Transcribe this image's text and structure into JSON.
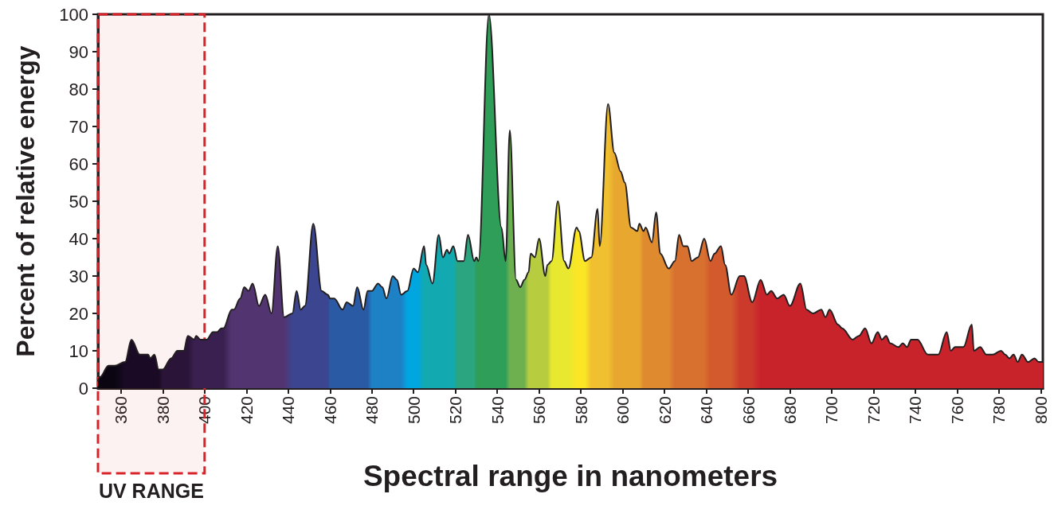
{
  "chart_data": {
    "type": "area",
    "xlabel": "Spectral range in nanometers",
    "ylabel": "Percent of relative energy",
    "x": [
      349,
      350,
      354,
      357,
      362,
      365,
      369,
      373,
      374,
      376,
      378,
      380,
      384,
      387,
      390,
      392,
      395,
      396,
      398,
      401,
      404,
      406,
      408,
      409,
      413,
      414,
      417,
      419,
      421,
      423,
      426,
      429,
      432,
      435,
      438,
      442,
      444,
      446,
      448,
      452,
      456,
      459,
      460,
      462,
      466,
      468,
      471,
      473,
      476,
      478,
      480,
      483,
      485,
      487,
      490,
      492,
      494,
      497,
      500,
      502,
      505,
      506,
      509,
      512,
      514,
      516,
      517,
      519,
      521,
      524,
      526,
      529,
      530,
      531,
      536,
      542,
      544,
      546,
      549,
      551,
      553,
      555,
      556,
      558,
      560,
      563,
      564,
      566,
      569,
      572,
      574,
      578,
      579,
      582,
      585,
      588,
      589,
      593,
      596,
      599,
      601,
      604,
      607,
      608,
      610,
      611,
      614,
      616,
      618,
      622,
      625,
      627,
      629,
      631,
      633,
      636,
      639,
      642,
      644,
      647,
      649,
      652,
      656,
      658,
      662,
      666,
      669,
      671,
      674,
      677,
      680,
      685,
      688,
      691,
      695,
      697,
      699,
      703,
      705,
      710,
      713,
      716,
      719,
      722,
      724,
      726,
      728,
      732,
      734,
      736,
      738,
      741,
      746,
      751,
      755,
      757,
      759,
      763,
      767,
      768,
      771,
      774,
      775,
      777,
      781,
      783,
      785,
      787,
      789,
      791,
      794,
      797,
      799,
      801
    ],
    "series": [
      {
        "color": "#231f20",
        "values": [
          2,
          3,
          6,
          6,
          7,
          13,
          9,
          9,
          8,
          9,
          5,
          5,
          8,
          10,
          10,
          14,
          13,
          14,
          13,
          13,
          15,
          15,
          16,
          16,
          21,
          21,
          24,
          27,
          26,
          28,
          22,
          25,
          20,
          38,
          19,
          20,
          26,
          21,
          22,
          44,
          26,
          25,
          24,
          24,
          21,
          23,
          22,
          27,
          21,
          26,
          26,
          28,
          27,
          24,
          30,
          29,
          25,
          26,
          32,
          31,
          38,
          33,
          28,
          41,
          35,
          37,
          36,
          38,
          34,
          34,
          41,
          34,
          35,
          34,
          100,
          43,
          34,
          69,
          29,
          27,
          29,
          31,
          36,
          35,
          40,
          30,
          33,
          34,
          50,
          34,
          32,
          43,
          42,
          34,
          35,
          48,
          38,
          76,
          63,
          58,
          55,
          43,
          42,
          44,
          42,
          43,
          39,
          47,
          36,
          32,
          34,
          41,
          38,
          38,
          34,
          35,
          40,
          34,
          36,
          38,
          33,
          25,
          30,
          30,
          23,
          29,
          25,
          26,
          24,
          25,
          22,
          28,
          21,
          20,
          21,
          19,
          21,
          17,
          16,
          13,
          14,
          16,
          12,
          15,
          13,
          14,
          12,
          11,
          12,
          11,
          13,
          13,
          9,
          9,
          15,
          10,
          11,
          11,
          17,
          10,
          11,
          9,
          9,
          9,
          10,
          9,
          8,
          9,
          7,
          9,
          7,
          8,
          7,
          7
        ],
        "colors": [
          "#0a0510",
          "#0a0510",
          "#0a0510",
          "#0a0510",
          "#1a0a25",
          "#1a0a25",
          "#1a0a25",
          "#1a0a25",
          "#1a0a25",
          "#1a0a25",
          "#1a0a25",
          "#2a1438",
          "#2a1438",
          "#2a1438",
          "#2a1438",
          "#2a1438",
          "#3a2050",
          "#3a2050",
          "#3a2050",
          "#3a2050",
          "#3a2050",
          "#3a2050",
          "#3a2050",
          "#3a2050",
          "#523570",
          "#523570",
          "#523570",
          "#523570",
          "#523570",
          "#523570",
          "#523570",
          "#523570",
          "#523570",
          "#523570",
          "#523570",
          "#3c4590",
          "#3c4590",
          "#3c4590",
          "#3c4590",
          "#3c4590",
          "#3c4590",
          "#3c4590",
          "#2b5aa5",
          "#2b5aa5",
          "#2b5aa5",
          "#2b5aa5",
          "#2b5aa5",
          "#2b5aa5",
          "#2b5aa5",
          "#2b5aa5",
          "#1e80c5",
          "#1e80c5",
          "#1e80c5",
          "#1e80c5",
          "#1e80c5",
          "#1e80c5",
          "#1e80c5",
          "#00a6e0",
          "#00a6e0",
          "#00a6e0",
          "#12aab0",
          "#12aab0",
          "#12aab0",
          "#12aab0",
          "#12aab0",
          "#12aab0",
          "#12aab0",
          "#12aab0",
          "#2aa580",
          "#2aa580",
          "#2aa580",
          "#2aa580",
          "#2e9e58",
          "#2e9e58",
          "#2e9e58",
          "#2e9e58",
          "#2e9e58",
          "#6eb050",
          "#6eb050",
          "#6eb050",
          "#6eb050",
          "#b8cc40",
          "#b8cc40",
          "#b8cc40",
          "#b8cc40",
          "#b8cc40",
          "#b8cc40",
          "#e8e830",
          "#e8e830",
          "#e8e830",
          "#e8e830",
          "#fbe625",
          "#fbe625",
          "#fbe625",
          "#f0c030",
          "#f0c030",
          "#f0c030",
          "#f0c030",
          "#e8a830",
          "#e8a830",
          "#e8a830",
          "#e8a830",
          "#e8a830",
          "#e8a830",
          "#e08a30",
          "#e08a30",
          "#e08a30",
          "#e08a30",
          "#e08a30",
          "#e08a30",
          "#d87030",
          "#d87030",
          "#d87030",
          "#d87030",
          "#d87030",
          "#d87030",
          "#d87030",
          "#d25a2c",
          "#d25a2c",
          "#d25a2c",
          "#d25a2c",
          "#d25a2c",
          "#cc3a2c",
          "#cc3a2c",
          "#cc3a2c",
          "#c8222a",
          "#c8222a",
          "#c8222a",
          "#c8222a",
          "#c8222a",
          "#c8222a",
          "#c8222a",
          "#c8222a",
          "#c8222a",
          "#c8222a",
          "#c8222a",
          "#c8222a",
          "#c8222a",
          "#c8222a",
          "#c8222a",
          "#c8222a",
          "#c8222a",
          "#c8222a",
          "#c8222a",
          "#c8222a",
          "#c8222a",
          "#c8222a",
          "#c8222a",
          "#c8222a",
          "#c8222a",
          "#c8222a",
          "#c8222a",
          "#c8222a",
          "#c8222a",
          "#c8222a",
          "#c8222a",
          "#c8222a",
          "#c8222a",
          "#c8222a",
          "#c8222a",
          "#c8222a",
          "#c8222a",
          "#c8222a",
          "#c8222a",
          "#c8222a",
          "#c8222a",
          "#c8222a",
          "#c8222a",
          "#c8222a",
          "#c8222a",
          "#c8222a",
          "#c8222a",
          "#c8222a",
          "#c8222a"
        ]
      }
    ],
    "xlim": [
      349,
      801
    ],
    "xticks": [
      360,
      380,
      400,
      420,
      440,
      460,
      480,
      500,
      520,
      540,
      560,
      580,
      600,
      620,
      640,
      660,
      680,
      700,
      720,
      740,
      760,
      780,
      800
    ],
    "ylim": [
      0,
      100
    ],
    "yticks": [
      0,
      10,
      20,
      30,
      40,
      50,
      60,
      70,
      80,
      90,
      100
    ],
    "bands": [
      {
        "axis": "x",
        "from": 349,
        "to": 400,
        "label": "UV RANGE",
        "color": "#d7232a"
      }
    ],
    "grid": false,
    "marker": "none",
    "line_style": "solid"
  }
}
